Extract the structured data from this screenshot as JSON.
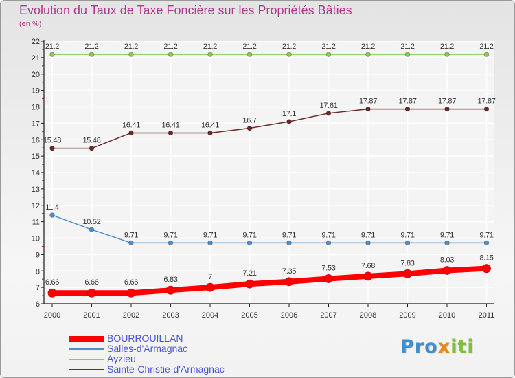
{
  "header": {
    "title": "Evolution du Taux de Taxe Foncière sur les Propriétés Bâties",
    "unit": "(en %)"
  },
  "brand": {
    "part1": "Pro",
    "part2": "x",
    "part3": "iti"
  },
  "colors": {
    "title": "#b03a8a",
    "legend_text": "#4a56d8",
    "axis": "#1a1a1a",
    "tick": "#cc0066",
    "grid": "#ffffff"
  },
  "chart_data": {
    "type": "line",
    "title": "Evolution du Taux de Taxe Foncière sur les Propriétés Bâties",
    "ylabel": "(en %)",
    "xlabel": "",
    "ylim": [
      6,
      22
    ],
    "yticks": [
      6,
      7,
      8,
      9,
      10,
      11,
      12,
      13,
      14,
      15,
      16,
      17,
      18,
      19,
      20,
      21,
      22
    ],
    "grid": true,
    "legend_position": "bottom-left",
    "x": [
      "2000",
      "2001",
      "2002",
      "2003",
      "2004",
      "2005",
      "2006",
      "2007",
      "2008",
      "2009",
      "2010",
      "2011"
    ],
    "series": [
      {
        "name": "BOURROUILLAN",
        "color": "#ff0000",
        "values": [
          6.66,
          6.66,
          6.66,
          6.83,
          7,
          7.21,
          7.35,
          7.53,
          7.68,
          7.83,
          8.03,
          8.15
        ],
        "labels": [
          "6.66",
          "6.66",
          "6.66",
          "6.83",
          "7",
          "7.21",
          "7.35",
          "7.53",
          "7.68",
          "7.83",
          "8.03",
          "8.15"
        ]
      },
      {
        "name": "Salles-d'Armagnac",
        "color": "#4f8fcf",
        "values": [
          11.4,
          10.52,
          9.71,
          9.71,
          9.71,
          9.71,
          9.71,
          9.71,
          9.71,
          9.71,
          9.71,
          9.71
        ],
        "labels": [
          "11.4",
          "10.52",
          "9.71",
          "9.71",
          "9.71",
          "9.71",
          "9.71",
          "9.71",
          "9.71",
          "9.71",
          "9.71",
          "9.71"
        ]
      },
      {
        "name": "Ayzieu",
        "color": "#88cc55",
        "values": [
          21.2,
          21.2,
          21.2,
          21.2,
          21.2,
          21.2,
          21.2,
          21.2,
          21.2,
          21.2,
          21.2,
          21.2
        ],
        "labels": [
          "21.2",
          "21.2",
          "21.2",
          "21.2",
          "21.2",
          "21.2",
          "21.2",
          "21.2",
          "21.2",
          "21.2",
          "21.2",
          "21.2"
        ]
      },
      {
        "name": "Sainte-Christie-d'Armagnac",
        "color": "#6b2a2a",
        "values": [
          15.48,
          15.48,
          16.41,
          16.41,
          16.41,
          16.7,
          17.1,
          17.61,
          17.87,
          17.87,
          17.87,
          17.87
        ],
        "labels": [
          "15.48",
          "15.48",
          "16.41",
          "16.41",
          "16.41",
          "16.7",
          "17.1",
          "17.61",
          "17.87",
          "17.87",
          "17.87",
          "17.87"
        ]
      }
    ]
  }
}
